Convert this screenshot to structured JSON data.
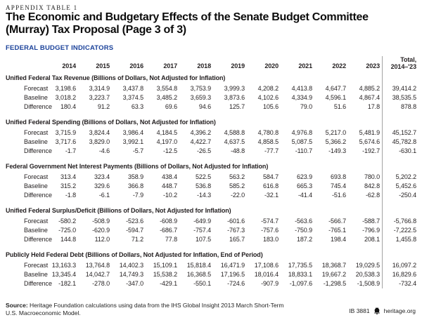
{
  "header": {
    "kicker": "APPENDIX TABLE 1",
    "title_line1": "The Economic and Budgetary Effects of the Senate Budget Committee",
    "title_line2": "(Murray) Tax Proposal (Page 3 of 3)",
    "section_label": "FEDERAL BUDGET INDICATORS"
  },
  "colors": {
    "accent_blue": "#1b429a",
    "text": "#231f20",
    "divider_gray": "#a3a3a3"
  },
  "chart_data": {
    "type": "table",
    "title": "Federal Budget Indicators",
    "years": [
      "2014",
      "2015",
      "2016",
      "2017",
      "2018",
      "2019",
      "2020",
      "2021",
      "2022",
      "2023"
    ],
    "total_header": [
      "Total,",
      "2014–'23"
    ],
    "sections": [
      {
        "title": "Unified Federal Tax Revenue (Billions of Dollars, Not Adjusted for Inflation)",
        "rows": [
          {
            "label": "Forecast",
            "values": [
              "3,198.6",
              "3,314.9",
              "3,437.8",
              "3,554.8",
              "3,753.9",
              "3,999.3",
              "4,208.2",
              "4,413.8",
              "4,647.7",
              "4,885.2"
            ],
            "total": "39,414.2"
          },
          {
            "label": "Baseline",
            "values": [
              "3,018.2",
              "3,223.7",
              "3,374.5",
              "3,485.2",
              "3,659.3",
              "3,873.6",
              "4,102.6",
              "4,334.9",
              "4,596.1",
              "4,867.4"
            ],
            "total": "38,535.5"
          },
          {
            "label": "Difference",
            "values": [
              "180.4",
              "91.2",
              "63.3",
              "69.6",
              "94.6",
              "125.7",
              "105.6",
              "79.0",
              "51.6",
              "17.8"
            ],
            "total": "878.8"
          }
        ]
      },
      {
        "title": "Unified Federal Spending (Billions of Dollars, Not Adjusted for Inflation)",
        "rows": [
          {
            "label": "Forecast",
            "values": [
              "3,715.9",
              "3,824.4",
              "3,986.4",
              "4,184.5",
              "4,396.2",
              "4,588.8",
              "4,780.8",
              "4,976.8",
              "5,217.0",
              "5,481.9"
            ],
            "total": "45,152.7"
          },
          {
            "label": "Baseline",
            "values": [
              "3,717.6",
              "3,829.0",
              "3,992.1",
              "4,197.0",
              "4,422.7",
              "4,637.5",
              "4,858.5",
              "5,087.5",
              "5,366.2",
              "5,674.6"
            ],
            "total": "45,782.8"
          },
          {
            "label": "Difference",
            "values": [
              "-1.7",
              "-4.6",
              "-5.7",
              "-12.5",
              "-26.5",
              "-48.8",
              "-77.7",
              "-110.7",
              "-149.3",
              "-192.7"
            ],
            "total": "-630.1"
          }
        ]
      },
      {
        "title": "Federal Government Net Interest Payments (Billions of Dollars, Not Adjusted for Inflation)",
        "rows": [
          {
            "label": "Forecast",
            "values": [
              "313.4",
              "323.4",
              "358.9",
              "438.4",
              "522.5",
              "563.2",
              "584.7",
              "623.9",
              "693.8",
              "780.0"
            ],
            "total": "5,202.2"
          },
          {
            "label": "Baseline",
            "values": [
              "315.2",
              "329.6",
              "366.8",
              "448.7",
              "536.8",
              "585.2",
              "616.8",
              "665.3",
              "745.4",
              "842.8"
            ],
            "total": "5,452.6"
          },
          {
            "label": "Difference",
            "values": [
              "-1.8",
              "-6.1",
              "-7.9",
              "-10.2",
              "-14.3",
              "-22.0",
              "-32.1",
              "-41.4",
              "-51.6",
              "-62.8"
            ],
            "total": "-250.4"
          }
        ]
      },
      {
        "title": "Unified Federal Surplus/Deficit (Billions of Dollars, Not Adjusted for Inflation)",
        "rows": [
          {
            "label": "Forecast",
            "values": [
              "-580.2",
              "-508.9",
              "-523.6",
              "-608.9",
              "-649.9",
              "-601.6",
              "-574.7",
              "-563.6",
              "-566.7",
              "-588.7"
            ],
            "total": "-5,766.8"
          },
          {
            "label": "Baseline",
            "values": [
              "-725.0",
              "-620.9",
              "-594.7",
              "-686.7",
              "-757.4",
              "-767.3",
              "-757.6",
              "-750.9",
              "-765.1",
              "-796.9"
            ],
            "total": "-7,222.5"
          },
          {
            "label": "Difference",
            "values": [
              "144.8",
              "112.0",
              "71.2",
              "77.8",
              "107.5",
              "165.7",
              "183.0",
              "187.2",
              "198.4",
              "208.1"
            ],
            "total": "1,455.8"
          }
        ]
      },
      {
        "title": "Publicly Held Federal Debt (Billions of Dollars, Not Adjusted for Inflation, End of Period)",
        "rows": [
          {
            "label": "Forecast",
            "values": [
              "13,163.3",
              "13,764.8",
              "14,402.3",
              "15,109.1",
              "15,818.4",
              "16,471.9",
              "17,108.6",
              "17,735.5",
              "18,368.7",
              "19,029.5"
            ],
            "total": "16,097.2"
          },
          {
            "label": "Baseline",
            "values": [
              "13,345.4",
              "14,042.7",
              "14,749.3",
              "15,538.2",
              "16,368.5",
              "17,196.5",
              "18,016.4",
              "18,833.1",
              "19,667.2",
              "20,538.3"
            ],
            "total": "16,829.6"
          },
          {
            "label": "Difference",
            "values": [
              "-182.1",
              "-278.0",
              "-347.0",
              "-429.1",
              "-550.1",
              "-724.6",
              "-907.9",
              "-1,097.6",
              "-1,298.5",
              "-1,508.9"
            ],
            "total": "-732.4"
          }
        ]
      }
    ]
  },
  "footer": {
    "source_label": "Source:",
    "source_line1": "Heritage Foundation calculations using data from the IHS Global Insight 2013 March Short-Term",
    "source_line2": "U.S. Macroeconomic Model.",
    "report_id": "IB 3881",
    "site": "heritage.org",
    "bell_icon": "heritage-liberty-bell"
  }
}
